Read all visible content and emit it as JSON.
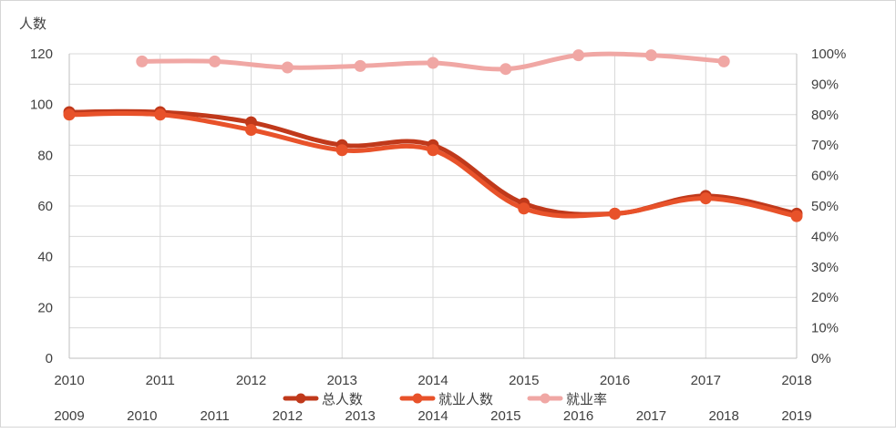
{
  "chart_data": {
    "type": "line",
    "title": "",
    "y_left": {
      "label": "人数",
      "ylim": [
        0,
        120
      ],
      "ticks": [
        "0",
        "20",
        "40",
        "60",
        "80",
        "100",
        "120"
      ]
    },
    "y_right": {
      "ylim": [
        0,
        100
      ],
      "ticks": [
        "0%",
        "10%",
        "20%",
        "30%",
        "40%",
        "50%",
        "60%",
        "70%",
        "80%",
        "90%",
        "100%"
      ]
    },
    "x_primary": {
      "categories": [
        "2010",
        "2011",
        "2012",
        "2013",
        "2014",
        "2015",
        "2016",
        "2017",
        "2018"
      ]
    },
    "x_secondary": {
      "categories": [
        "2009",
        "2010",
        "2011",
        "2012",
        "2013",
        "2014",
        "2015",
        "2016",
        "2017",
        "2018",
        "2019"
      ]
    },
    "grid": true,
    "legend_position": "bottom",
    "series": [
      {
        "name": "总人数",
        "axis": "left",
        "axis_x": "primary",
        "color": "#c0391b",
        "x": [
          "2010",
          "2011",
          "2012",
          "2013",
          "2014",
          "2015",
          "2016",
          "2017",
          "2018"
        ],
        "values": [
          97,
          97,
          93,
          84,
          84,
          61,
          57,
          64,
          57
        ]
      },
      {
        "name": "就业人数",
        "axis": "left",
        "axis_x": "primary",
        "color": "#e8522a",
        "x": [
          "2010",
          "2011",
          "2012",
          "2013",
          "2014",
          "2015",
          "2016",
          "2017",
          "2018"
        ],
        "values": [
          96,
          96,
          90,
          82,
          82,
          59,
          57,
          63,
          56
        ]
      },
      {
        "name": "就业率",
        "axis": "right",
        "axis_x": "secondary",
        "color": "#f0a7a4",
        "x": [
          "2010",
          "2011",
          "2012",
          "2013",
          "2014",
          "2015",
          "2016",
          "2017",
          "2018"
        ],
        "values": [
          97.5,
          97.5,
          95.5,
          96,
          97,
          95,
          99.5,
          99.5,
          97.5
        ]
      }
    ]
  }
}
